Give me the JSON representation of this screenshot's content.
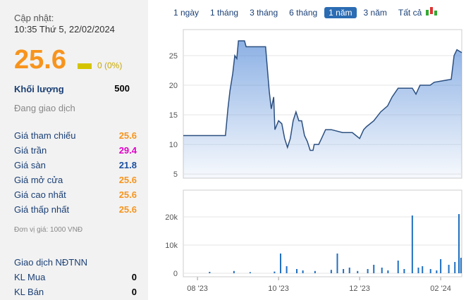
{
  "info": {
    "update_label": "Cập nhật:",
    "update_time": "10:35 Thứ 5, 22/02/2024",
    "price": "25.6",
    "change": "0 (0%)",
    "volume_label": "Khối lượng",
    "volume": "500",
    "status": "Đang giao dịch",
    "rows": [
      {
        "label": "Giá tham chiếu",
        "value": "25.6",
        "color": "#f7941d"
      },
      {
        "label": "Giá trần",
        "value": "29.4",
        "color": "#e000c8"
      },
      {
        "label": "Giá sàn",
        "value": "21.8",
        "color": "#1a4fa0"
      },
      {
        "label": "Giá mở cửa",
        "value": "25.6",
        "color": "#f7941d"
      },
      {
        "label": "Giá cao nhất",
        "value": "25.6",
        "color": "#f7941d"
      },
      {
        "label": "Giá thấp nhất",
        "value": "25.6",
        "color": "#f7941d"
      }
    ],
    "unit": "Đơn vị giá: 1000 VNĐ",
    "foreign_title": "Giao dịch NĐTNN",
    "foreign": [
      {
        "label": "KL Mua",
        "value": "0"
      },
      {
        "label": "KL Bán",
        "value": "0"
      }
    ]
  },
  "tabs": {
    "items": [
      "1 ngày",
      "1 tháng",
      "3 tháng",
      "6 tháng",
      "1 năm",
      "3 năm",
      "Tất cả"
    ],
    "active": 4
  },
  "chart_data": [
    {
      "type": "area",
      "color": "#5b8fd9",
      "x": [
        7.65,
        8.69,
        8.75,
        8.8,
        8.87,
        8.92,
        8.97,
        9.01,
        9.16,
        9.2,
        9.68,
        9.77,
        9.82,
        9.88,
        9.91,
        10.0,
        10.08,
        10.15,
        10.22,
        10.29,
        10.36,
        10.43,
        10.5,
        10.57,
        10.64,
        10.71,
        10.78,
        10.85,
        10.88,
        10.99,
        11.06,
        11.16,
        11.3,
        11.58,
        11.82,
        12.0,
        12.1,
        12.17,
        12.35,
        12.52,
        12.69,
        12.8,
        12.95,
        13.3,
        13.39,
        13.49,
        13.74,
        13.84,
        14.26,
        14.33,
        14.4,
        14.52
      ],
      "values": [
        11.5,
        11.5,
        16,
        19,
        22,
        25,
        24.5,
        27.5,
        27.5,
        26.5,
        26.5,
        19,
        16,
        18,
        12.5,
        14,
        13.5,
        11,
        9.5,
        11,
        14,
        15.5,
        14,
        14,
        11.5,
        10.5,
        9,
        9,
        10,
        10,
        11,
        12.5,
        12.5,
        12,
        12,
        11,
        12.5,
        13,
        14,
        15.5,
        16.5,
        18,
        19.5,
        19.5,
        18.5,
        20,
        20,
        20.5,
        21,
        25,
        26,
        25.5
      ],
      "xlim": [
        7.65,
        14.52
      ],
      "ylim": [
        4.3,
        29.4
      ],
      "yticks": [
        5,
        10,
        15,
        20,
        25
      ],
      "xticks": [
        {
          "value": 8,
          "label": "08 '23"
        },
        {
          "value": 10,
          "label": "10 '23"
        },
        {
          "value": 12,
          "label": "12 '23"
        },
        {
          "value": 14,
          "label": "02 '24"
        }
      ]
    },
    {
      "type": "bar",
      "color": "#1f6fc1",
      "x": [
        8.3,
        8.9,
        9.3,
        9.9,
        10.05,
        10.2,
        10.45,
        10.6,
        10.9,
        11.3,
        11.45,
        11.6,
        11.75,
        11.95,
        12.2,
        12.35,
        12.55,
        12.7,
        12.95,
        13.1,
        13.3,
        13.45,
        13.55,
        13.75,
        13.9,
        14.0,
        14.2,
        14.35,
        14.45,
        14.5
      ],
      "values": [
        500,
        800,
        400,
        600,
        7000,
        2500,
        1500,
        1000,
        800,
        1200,
        7000,
        1500,
        2000,
        800,
        1500,
        3000,
        2000,
        1000,
        4500,
        1500,
        20500,
        2000,
        2500,
        1500,
        1000,
        5000,
        3000,
        4000,
        21000,
        5500
      ],
      "xlim": [
        7.65,
        14.52
      ],
      "ylim": [
        -1250,
        29500
      ],
      "yticks": [
        0,
        {
          "value": 10000,
          "label": "10k"
        },
        {
          "value": 20000,
          "label": "20k"
        }
      ]
    }
  ]
}
